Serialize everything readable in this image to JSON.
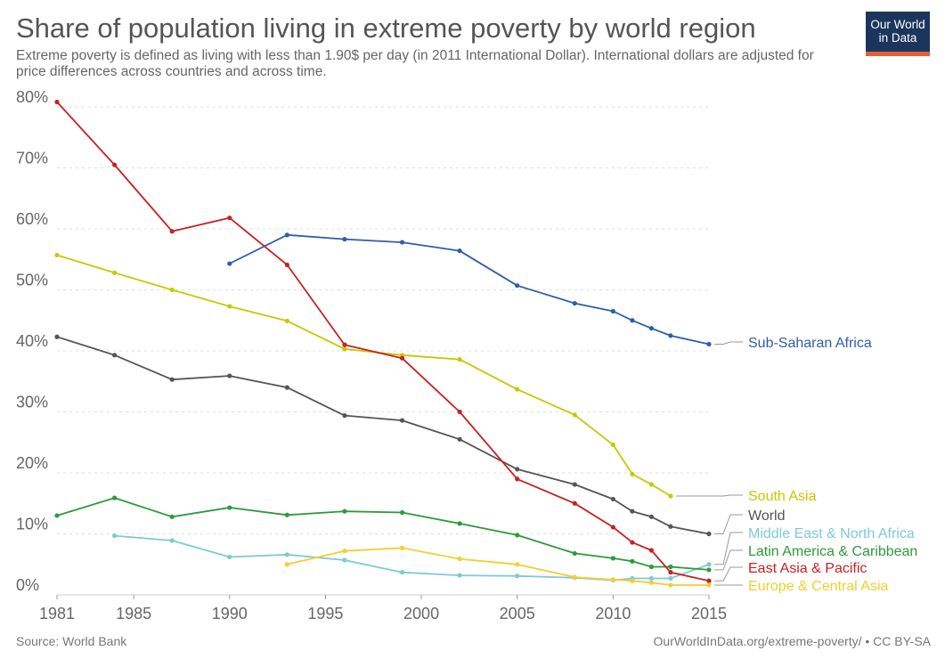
{
  "header": {
    "title": "Share of population living in extreme poverty by world region",
    "subtitle": "Extreme poverty is defined as living with less than 1.90$ per day (in 2011 International Dollar). International dollars are adjusted for price differences across countries and across time."
  },
  "logo": {
    "line1": "Our World",
    "line2": "in Data"
  },
  "footer": {
    "source": "Source: World Bank",
    "credit": "OurWorldInData.org/extreme-poverty/ • CC BY-SA"
  },
  "chart_data": {
    "type": "line",
    "title": "Share of population living in extreme poverty by world region",
    "xlim": [
      1981,
      2015
    ],
    "ylim": [
      0,
      80
    ],
    "x_ticks": [
      1981,
      1985,
      1990,
      1995,
      2000,
      2005,
      2010,
      2015
    ],
    "y_ticks": [
      0,
      10,
      20,
      30,
      40,
      50,
      60,
      70,
      80
    ],
    "y_tick_labels": [
      "0%",
      "10%",
      "20%",
      "30%",
      "40%",
      "50%",
      "60%",
      "70%",
      "80%"
    ],
    "grid": "horizontal dotted",
    "legend": "inline labels at right",
    "series": [
      {
        "name": "Sub-Saharan Africa",
        "color": "#2f5ea8",
        "x": [
          1990,
          1993,
          1996,
          1999,
          2002,
          2005,
          2008,
          2010,
          2011,
          2012,
          2013,
          2015
        ],
        "y": [
          54.3,
          59.0,
          58.3,
          57.8,
          56.4,
          50.7,
          47.8,
          46.5,
          45.0,
          43.7,
          42.5,
          41.1
        ]
      },
      {
        "name": "South Asia",
        "color": "#c8c800",
        "x": [
          1981,
          1984,
          1987,
          1990,
          1993,
          1996,
          1999,
          2002,
          2005,
          2008,
          2010,
          2011,
          2012,
          2013
        ],
        "y": [
          55.7,
          52.8,
          50.0,
          47.3,
          44.9,
          40.3,
          39.3,
          38.6,
          33.7,
          29.5,
          24.6,
          19.8,
          18.1,
          16.2
        ]
      },
      {
        "name": "World",
        "color": "#555555",
        "x": [
          1981,
          1984,
          1987,
          1990,
          1993,
          1996,
          1999,
          2002,
          2005,
          2008,
          2010,
          2011,
          2012,
          2013,
          2015
        ],
        "y": [
          42.3,
          39.3,
          35.3,
          35.9,
          34.0,
          29.4,
          28.6,
          25.5,
          20.6,
          18.1,
          15.7,
          13.7,
          12.8,
          11.2,
          10.0
        ]
      },
      {
        "name": "Middle East & North Africa",
        "color": "#7ecad3",
        "x": [
          1984,
          1987,
          1990,
          1993,
          1996,
          1999,
          2002,
          2005,
          2008,
          2010,
          2011,
          2012,
          2013,
          2015
        ],
        "y": [
          9.7,
          8.9,
          6.2,
          6.6,
          5.7,
          3.7,
          3.2,
          3.1,
          2.8,
          2.4,
          2.7,
          2.7,
          2.7,
          5.0
        ]
      },
      {
        "name": "Latin America & Caribbean",
        "color": "#2e9a3b",
        "x": [
          1981,
          1984,
          1987,
          1990,
          1993,
          1996,
          1999,
          2002,
          2005,
          2008,
          2010,
          2011,
          2012,
          2013,
          2015
        ],
        "y": [
          13.0,
          15.9,
          12.8,
          14.3,
          13.1,
          13.7,
          13.5,
          11.7,
          9.8,
          6.8,
          6.0,
          5.5,
          4.6,
          4.6,
          4.1
        ]
      },
      {
        "name": "East Asia & Pacific",
        "color": "#c82121",
        "x": [
          1981,
          1984,
          1987,
          1990,
          1993,
          1996,
          1999,
          2002,
          2005,
          2008,
          2010,
          2011,
          2012,
          2013,
          2015
        ],
        "y": [
          80.8,
          70.5,
          59.6,
          61.8,
          54.1,
          41.0,
          38.8,
          30.0,
          19.0,
          15.0,
          11.1,
          8.6,
          7.3,
          3.7,
          2.3
        ]
      },
      {
        "name": "Europe & Central Asia",
        "color": "#f2cf2f",
        "x": [
          1993,
          1996,
          1999,
          2002,
          2005,
          2008,
          2010,
          2011,
          2012,
          2013,
          2015
        ],
        "y": [
          5.0,
          7.2,
          7.7,
          5.9,
          5.0,
          2.9,
          2.5,
          2.3,
          2.0,
          1.6,
          1.6
        ]
      }
    ]
  }
}
